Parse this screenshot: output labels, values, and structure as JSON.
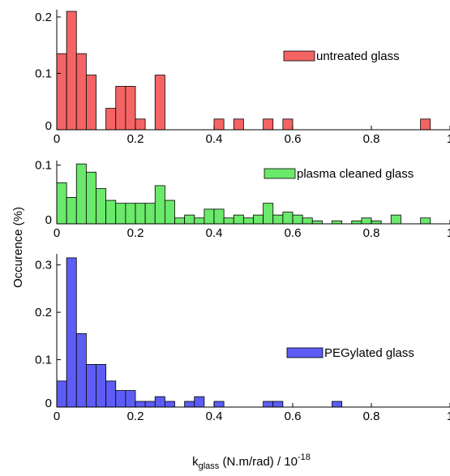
{
  "ylabel": "Occurence (%)",
  "xlabel": {
    "main": "k",
    "subscript": "glass",
    "rest": " (N.m/rad) / 10",
    "superscript": "-18"
  },
  "chart_data": [
    {
      "type": "bar",
      "name": "untreated glass",
      "color": "#f46464",
      "xlim": [
        0,
        1
      ],
      "ylim": [
        0,
        0.21
      ],
      "xticks": [
        "0",
        "0.2",
        "0.4",
        "0.6",
        "0.8",
        "1"
      ],
      "yticks": [
        {
          "v": 0,
          "label": "0"
        },
        {
          "v": 0.1,
          "label": "0.1"
        },
        {
          "v": 0.2,
          "label": "0.2"
        }
      ],
      "bin_width": 0.025,
      "bins": [
        {
          "x": 0.0,
          "y": 0.135
        },
        {
          "x": 0.025,
          "y": 0.21
        },
        {
          "x": 0.05,
          "y": 0.135
        },
        {
          "x": 0.075,
          "y": 0.097
        },
        {
          "x": 0.125,
          "y": 0.038
        },
        {
          "x": 0.15,
          "y": 0.077
        },
        {
          "x": 0.175,
          "y": 0.077
        },
        {
          "x": 0.2,
          "y": 0.019
        },
        {
          "x": 0.25,
          "y": 0.097
        },
        {
          "x": 0.4,
          "y": 0.019
        },
        {
          "x": 0.45,
          "y": 0.019
        },
        {
          "x": 0.525,
          "y": 0.019
        },
        {
          "x": 0.575,
          "y": 0.019
        },
        {
          "x": 0.925,
          "y": 0.019
        }
      ]
    },
    {
      "type": "bar",
      "name": "plasma cleaned glass",
      "color": "#6ae96a",
      "xlim": [
        0,
        1
      ],
      "ylim": [
        0,
        0.105
      ],
      "xticks": [
        "0",
        "0.2",
        "0.4",
        "0.6",
        "0.8",
        "1"
      ],
      "yticks": [
        {
          "v": 0,
          "label": "0"
        },
        {
          "v": 0.1,
          "label": "0.1"
        }
      ],
      "bin_width": 0.025,
      "bins": [
        {
          "x": 0.0,
          "y": 0.07
        },
        {
          "x": 0.025,
          "y": 0.045
        },
        {
          "x": 0.05,
          "y": 0.102
        },
        {
          "x": 0.075,
          "y": 0.088
        },
        {
          "x": 0.1,
          "y": 0.06
        },
        {
          "x": 0.125,
          "y": 0.04
        },
        {
          "x": 0.15,
          "y": 0.035
        },
        {
          "x": 0.175,
          "y": 0.035
        },
        {
          "x": 0.2,
          "y": 0.035
        },
        {
          "x": 0.225,
          "y": 0.035
        },
        {
          "x": 0.25,
          "y": 0.065
        },
        {
          "x": 0.275,
          "y": 0.04
        },
        {
          "x": 0.3,
          "y": 0.01
        },
        {
          "x": 0.325,
          "y": 0.015
        },
        {
          "x": 0.35,
          "y": 0.01
        },
        {
          "x": 0.375,
          "y": 0.025
        },
        {
          "x": 0.4,
          "y": 0.025
        },
        {
          "x": 0.425,
          "y": 0.01
        },
        {
          "x": 0.45,
          "y": 0.015
        },
        {
          "x": 0.475,
          "y": 0.01
        },
        {
          "x": 0.5,
          "y": 0.015
        },
        {
          "x": 0.525,
          "y": 0.035
        },
        {
          "x": 0.55,
          "y": 0.015
        },
        {
          "x": 0.575,
          "y": 0.02
        },
        {
          "x": 0.6,
          "y": 0.015
        },
        {
          "x": 0.625,
          "y": 0.01
        },
        {
          "x": 0.65,
          "y": 0.005
        },
        {
          "x": 0.7,
          "y": 0.005
        },
        {
          "x": 0.75,
          "y": 0.005
        },
        {
          "x": 0.775,
          "y": 0.01
        },
        {
          "x": 0.8,
          "y": 0.005
        },
        {
          "x": 0.85,
          "y": 0.015
        },
        {
          "x": 0.925,
          "y": 0.01
        }
      ]
    },
    {
      "type": "bar",
      "name": "PEGylated glass",
      "color": "#5d5df5",
      "xlim": [
        0,
        1
      ],
      "ylim": [
        0,
        0.32
      ],
      "xticks": [
        "0",
        "0.2",
        "0.4",
        "0.6",
        "0.8",
        "1"
      ],
      "yticks": [
        {
          "v": 0,
          "label": "0"
        },
        {
          "v": 0.1,
          "label": "0.1"
        },
        {
          "v": 0.2,
          "label": "0.2"
        },
        {
          "v": 0.3,
          "label": "0.3"
        }
      ],
      "bin_width": 0.025,
      "bins": [
        {
          "x": 0.0,
          "y": 0.055
        },
        {
          "x": 0.025,
          "y": 0.315
        },
        {
          "x": 0.05,
          "y": 0.155
        },
        {
          "x": 0.075,
          "y": 0.09
        },
        {
          "x": 0.1,
          "y": 0.09
        },
        {
          "x": 0.125,
          "y": 0.055
        },
        {
          "x": 0.15,
          "y": 0.035
        },
        {
          "x": 0.175,
          "y": 0.035
        },
        {
          "x": 0.2,
          "y": 0.012
        },
        {
          "x": 0.225,
          "y": 0.012
        },
        {
          "x": 0.25,
          "y": 0.022
        },
        {
          "x": 0.275,
          "y": 0.012
        },
        {
          "x": 0.325,
          "y": 0.012
        },
        {
          "x": 0.35,
          "y": 0.022
        },
        {
          "x": 0.4,
          "y": 0.012
        },
        {
          "x": 0.525,
          "y": 0.012
        },
        {
          "x": 0.55,
          "y": 0.012
        },
        {
          "x": 0.7,
          "y": 0.012
        }
      ]
    }
  ]
}
